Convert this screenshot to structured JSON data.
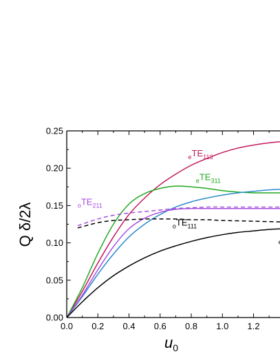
{
  "chart_data": {
    "type": "line",
    "ylabel": "Q δ/2λ",
    "xlabel_main": "u",
    "xlabel_sub": "0",
    "xlim": [
      0,
      1.4
    ],
    "ylim": [
      0,
      0.25
    ],
    "x_ticks": [
      "0.0",
      "0.2",
      "0.4",
      "0.6",
      "0.8",
      "1.0",
      "1.2"
    ],
    "y_ticks": [
      "0.00",
      "0.05",
      "0.10",
      "0.15",
      "0.20",
      "0.25"
    ],
    "grid": false,
    "series": [
      {
        "name": "eTE113",
        "color": "#c2185b",
        "style": "solid",
        "points": [
          [
            0.0,
            0.0
          ],
          [
            0.1,
            0.035
          ],
          [
            0.2,
            0.073
          ],
          [
            0.3,
            0.108
          ],
          [
            0.4,
            0.138
          ],
          [
            0.5,
            0.16
          ],
          [
            0.6,
            0.178
          ],
          [
            0.7,
            0.192
          ],
          [
            0.8,
            0.204
          ],
          [
            0.9,
            0.213
          ],
          [
            1.0,
            0.221
          ],
          [
            1.1,
            0.227
          ],
          [
            1.2,
            0.231
          ],
          [
            1.3,
            0.234
          ],
          [
            1.4,
            0.236
          ]
        ]
      },
      {
        "name": "eTE311",
        "color": "#1fa81f",
        "style": "solid",
        "points": [
          [
            0.0,
            0.0
          ],
          [
            0.1,
            0.04
          ],
          [
            0.2,
            0.086
          ],
          [
            0.3,
            0.125
          ],
          [
            0.4,
            0.152
          ],
          [
            0.5,
            0.166
          ],
          [
            0.6,
            0.173
          ],
          [
            0.7,
            0.176
          ],
          [
            0.8,
            0.175
          ],
          [
            0.9,
            0.173
          ],
          [
            1.0,
            0.17
          ],
          [
            1.1,
            0.168
          ],
          [
            1.2,
            0.167
          ],
          [
            1.3,
            0.167
          ],
          [
            1.4,
            0.167
          ]
        ]
      },
      {
        "name": "blue",
        "color": "#2a8bc9",
        "style": "solid",
        "points": [
          [
            0.0,
            0.0
          ],
          [
            0.1,
            0.028
          ],
          [
            0.2,
            0.058
          ],
          [
            0.3,
            0.085
          ],
          [
            0.4,
            0.108
          ],
          [
            0.5,
            0.125
          ],
          [
            0.6,
            0.138
          ],
          [
            0.7,
            0.148
          ],
          [
            0.8,
            0.155
          ],
          [
            0.9,
            0.16
          ],
          [
            1.0,
            0.164
          ],
          [
            1.1,
            0.167
          ],
          [
            1.2,
            0.169
          ],
          [
            1.3,
            0.171
          ],
          [
            1.4,
            0.172
          ]
        ]
      },
      {
        "name": "oTE211",
        "color": "#a64de0",
        "style": "solid",
        "points": [
          [
            0.0,
            0.0
          ],
          [
            0.1,
            0.03
          ],
          [
            0.2,
            0.064
          ],
          [
            0.3,
            0.095
          ],
          [
            0.4,
            0.119
          ],
          [
            0.5,
            0.133
          ],
          [
            0.6,
            0.141
          ],
          [
            0.7,
            0.145
          ],
          [
            0.8,
            0.146
          ],
          [
            0.9,
            0.146
          ],
          [
            1.0,
            0.146
          ],
          [
            1.1,
            0.146
          ],
          [
            1.2,
            0.146
          ],
          [
            1.3,
            0.146
          ],
          [
            1.4,
            0.146
          ]
        ]
      },
      {
        "name": "oTE211-dashed",
        "color": "#a64de0",
        "style": "dashed",
        "points": [
          [
            0.07,
            0.123
          ],
          [
            0.2,
            0.132
          ],
          [
            0.3,
            0.137
          ],
          [
            0.4,
            0.14
          ],
          [
            0.5,
            0.142
          ],
          [
            0.6,
            0.144
          ],
          [
            0.7,
            0.146
          ],
          [
            0.8,
            0.147
          ],
          [
            0.9,
            0.148
          ],
          [
            1.0,
            0.148
          ],
          [
            1.2,
            0.148
          ],
          [
            1.4,
            0.148
          ]
        ]
      },
      {
        "name": "oTE111-dashed",
        "color": "#000000",
        "style": "dashed",
        "points": [
          [
            0.07,
            0.12
          ],
          [
            0.2,
            0.127
          ],
          [
            0.3,
            0.13
          ],
          [
            0.4,
            0.131
          ],
          [
            0.5,
            0.132
          ],
          [
            0.6,
            0.132
          ],
          [
            0.7,
            0.132
          ],
          [
            0.8,
            0.131
          ],
          [
            0.9,
            0.131
          ],
          [
            1.0,
            0.13
          ],
          [
            1.2,
            0.129
          ],
          [
            1.4,
            0.128
          ]
        ]
      },
      {
        "name": "eTE-black",
        "color": "#000000",
        "style": "solid",
        "points": [
          [
            0.0,
            0.0
          ],
          [
            0.1,
            0.021
          ],
          [
            0.2,
            0.04
          ],
          [
            0.3,
            0.056
          ],
          [
            0.4,
            0.069
          ],
          [
            0.5,
            0.08
          ],
          [
            0.6,
            0.089
          ],
          [
            0.7,
            0.096
          ],
          [
            0.8,
            0.102
          ],
          [
            0.9,
            0.107
          ],
          [
            1.0,
            0.111
          ],
          [
            1.1,
            0.114
          ],
          [
            1.2,
            0.116
          ],
          [
            1.3,
            0.118
          ],
          [
            1.4,
            0.119
          ]
        ]
      }
    ],
    "labels": [
      {
        "pre": "e",
        "main": "TE",
        "sub": "113",
        "color": "#c2185b",
        "x": 0.78,
        "y": 0.216
      },
      {
        "pre": "e",
        "main": "TE",
        "sub": "311",
        "color": "#1fa81f",
        "x": 0.83,
        "y": 0.184
      },
      {
        "pre": "o",
        "main": "TE",
        "sub": "211",
        "color": "#a64de0",
        "x": 0.07,
        "y": 0.151
      },
      {
        "pre": "o",
        "main": "TE",
        "sub": "111",
        "color": "#000000",
        "x": 0.68,
        "y": 0.123
      },
      {
        "pre": "e",
        "main": "T",
        "sub": "",
        "color": "#000000",
        "x": 1.36,
        "y": 0.102
      }
    ]
  }
}
